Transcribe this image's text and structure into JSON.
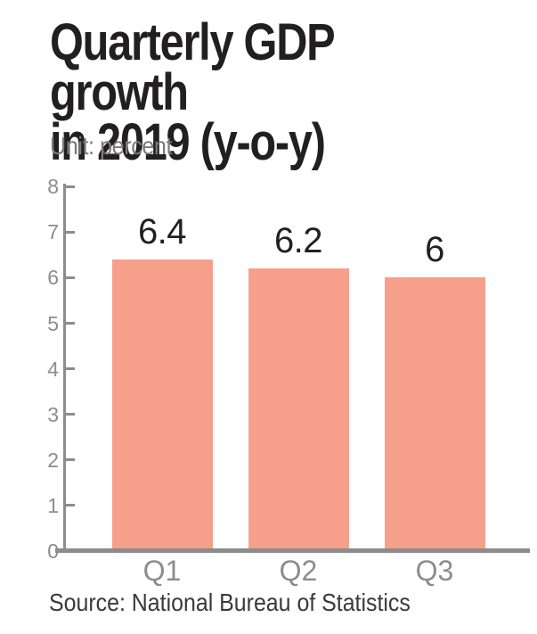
{
  "title": "Quarterly GDP growth\nin 2019 (y-o-y)",
  "unit_label": "Unit: percent",
  "source": "Source: National Bureau of Statistics",
  "colors": {
    "bar": "#F6A08B",
    "axis": "#8c8c8c",
    "title_text": "#231f20",
    "unit_text": "#7b7b7b",
    "source_text": "#3a3a3a"
  },
  "chart_data": {
    "type": "bar",
    "categories": [
      "Q1",
      "Q2",
      "Q3"
    ],
    "values": [
      6.4,
      6.2,
      6
    ],
    "value_labels": [
      "6.4",
      "6.2",
      "6"
    ],
    "title": "Quarterly GDP growth in 2019 (y-o-y)",
    "xlabel": "",
    "ylabel": "percent",
    "ylim": [
      0,
      8
    ],
    "ytick_step": 1,
    "ytick_labels": [
      "0",
      "1",
      "2",
      "3",
      "4",
      "5",
      "6",
      "7",
      "8"
    ],
    "grid": false,
    "legend": false,
    "bar_color": "#F6A08B"
  }
}
